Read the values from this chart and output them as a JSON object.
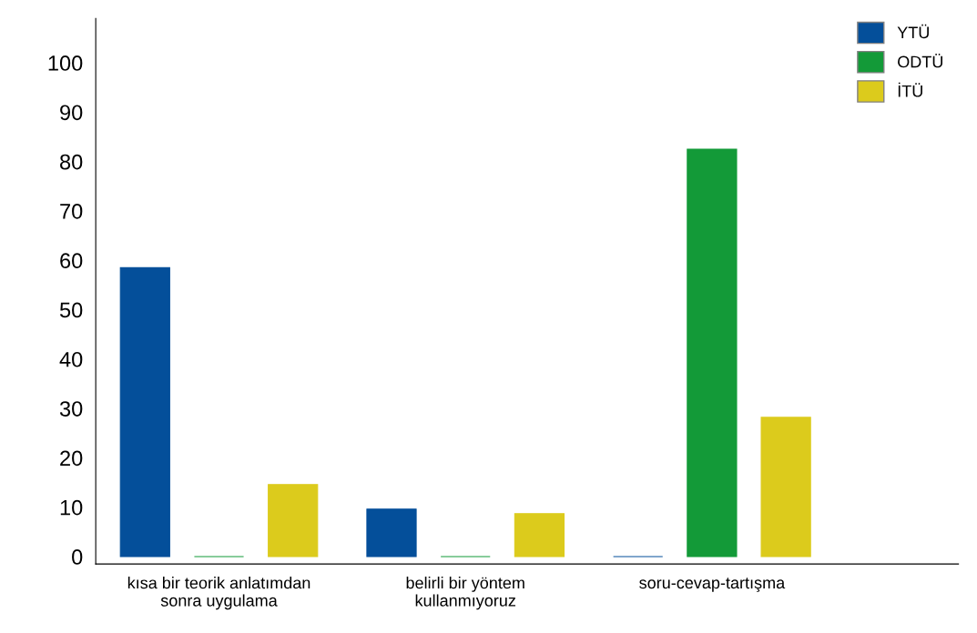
{
  "chart_data": {
    "type": "bar",
    "categories": [
      "kısa bir teorik anlatımdan sonra uygulama",
      "belirli bir yöntem kullanmıyoruz",
      "soru-cevap-tartışma"
    ],
    "series": [
      {
        "name": "YTÜ",
        "color": "#044f9a",
        "values": [
          58.5,
          9.6,
          0
        ]
      },
      {
        "name": "ODTÜ",
        "color": "#139a38",
        "values": [
          0,
          0,
          82.5
        ]
      },
      {
        "name": "İTÜ",
        "color": "#dccb1c",
        "values": [
          14.6,
          8.7,
          28.2
        ]
      }
    ],
    "ylim": [
      -1.5,
      109
    ],
    "yticks": [
      0,
      10,
      20,
      30,
      40,
      50,
      60,
      70,
      80,
      90,
      100
    ],
    "grid": false,
    "legend": "top right"
  }
}
